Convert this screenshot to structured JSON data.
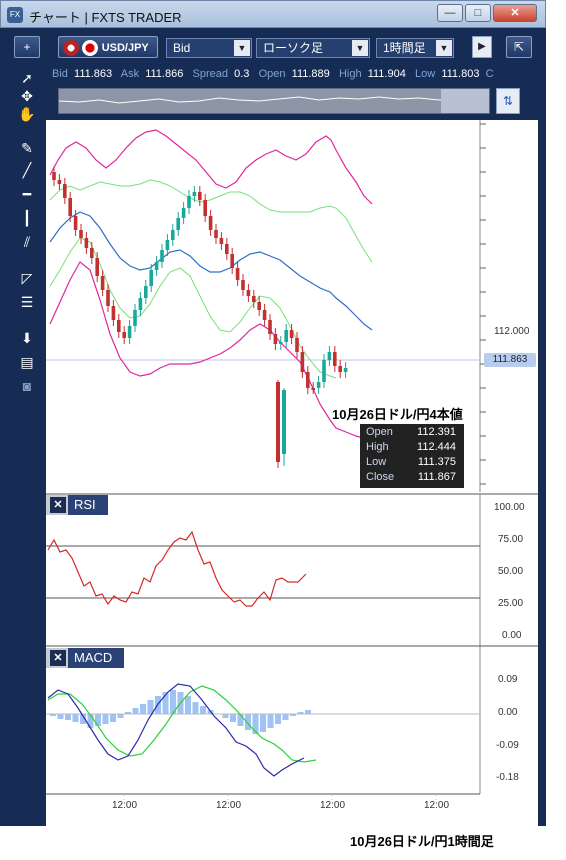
{
  "window": {
    "title": "チャート | FXTS TRADER",
    "app_icon": "FX",
    "minimize": "—",
    "maximize": "□",
    "close": "✕"
  },
  "toolbar": {
    "add": "+",
    "pair": "USD/JPY",
    "price_type": "Bid",
    "chart_type": "ローソク足",
    "timeframe": "1時間足",
    "restore": "⇱"
  },
  "quote": {
    "bid_label": "Bid",
    "bid": "111.863",
    "ask_label": "Ask",
    "ask": "111.866",
    "spread_label": "Spread",
    "spread": "0.3",
    "open_label": "Open",
    "open": "111.889",
    "high_label": "High",
    "high": "111.904",
    "low_label": "Low",
    "low": "111.803",
    "c_label": "C"
  },
  "price_axis": {
    "label_112": "112.000",
    "current": "111.863"
  },
  "ohlc_box": {
    "heading": "10月26日ドル/円4本値",
    "open_label": "Open",
    "open": "112.391",
    "high_label": "High",
    "high": "112.444",
    "low_label": "Low",
    "low": "111.375",
    "close_label": "Close",
    "close": "111.867"
  },
  "rsi": {
    "name": "RSI",
    "ticks": [
      "100.00",
      "75.00",
      "50.00",
      "25.00",
      "0.00"
    ]
  },
  "macd": {
    "name": "MACD",
    "ticks": [
      "0.09",
      "0.00",
      "-0.09",
      "-0.18"
    ]
  },
  "time_axis": [
    "12:00",
    "12:00",
    "12:00",
    "12:00"
  ],
  "caption": "10月26日ドル/円1時間足",
  "colors": {
    "frame": "#172c55",
    "bollinger": "#e0269d",
    "band_inner": "#77e07a",
    "ma": "#2a6fc9",
    "bull": "#1aa89a",
    "bear": "#c0312f",
    "rsi": "#d42a2a",
    "macd_line": "#2a2aa8",
    "signal_line": "#2ecf3a",
    "histogram": "#9fc3f5"
  }
}
